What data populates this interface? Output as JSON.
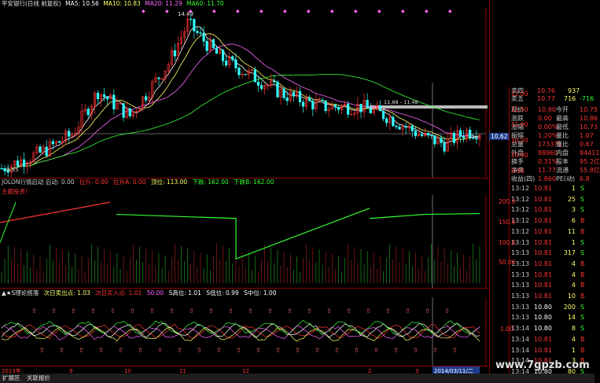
{
  "main_title": {
    "stock": "平安银行(日线 前复权)",
    "ma5": "MA5: 10.56",
    "ma10": "MA10: 10.83",
    "ma20": "MA20: 11.29",
    "ma60": "MA60: 11.70"
  },
  "colors": {
    "up": "#ff3333",
    "down": "#33ffff",
    "ma5": "#ffffff",
    "ma10": "#ffff66",
    "ma20": "#ff66ff",
    "ma60": "#33ff33",
    "axis": "#ff3333",
    "bg": "#000000"
  },
  "main_axis": {
    "ticks": [
      "12.00",
      "11.50",
      "11.00",
      "10.50",
      "10.00",
      "9.50"
    ],
    "current_price": "10.62",
    "ylim": [
      9.45,
      12.2
    ]
  },
  "main_annotations": {
    "high": "14.49",
    "low": "9.55",
    "range": "11.68 - 11.48"
  },
  "ind1": {
    "title": "JOLON行情启动 启动: 0.00",
    "items": [
      "拉升: 0.00",
      "拉升A: 0.00",
      "顶位: 113.00",
      "下跌: 162.00",
      "下跌B: 162.00"
    ],
    "subtitle": "主题投资！",
    "ticks": [
      "200.0",
      "150.0",
      "100.0",
      "50.00"
    ]
  },
  "ind2": {
    "title": "▲★S理论搭落",
    "items": [
      "次日卖出点: 1.03",
      "次日买入点: 1.01",
      "50.00",
      "S高位: 1.01",
      "S低位: 0.99",
      "S中位: 1.00"
    ],
    "ticks": [
      "1.00"
    ]
  },
  "x_axis": {
    "labels": [
      "2013年",
      "9",
      "10",
      "11",
      "12",
      "2",
      "3"
    ],
    "date_box": "2014/03/11/二"
  },
  "quote": {
    "sell5": {
      "label": "卖四",
      "price": "10.76",
      "vol": "937"
    },
    "sell1": {
      "label": "卖五",
      "price": "10.77",
      "vol": "716",
      "chg": "-716"
    },
    "rows": [
      {
        "l1": "现价",
        "v1": "10.80",
        "l2": "今开",
        "v2": "10.75"
      },
      {
        "l1": "涨跌",
        "v1": "0.00",
        "l2": "最高",
        "v2": "10.86"
      },
      {
        "l1": "涨幅",
        "v1": "0.00%",
        "l2": "最低",
        "v2": "10.73"
      },
      {
        "l1": "振幅",
        "v1": "1.20%",
        "l2": "量比",
        "v2": "1.07"
      },
      {
        "l1": "总量",
        "v1": "173371",
        "l2": "量比",
        "v2": "0.67"
      },
      {
        "l1": "外盘",
        "v1": "88960",
        "l2": "内盘",
        "v2": "84411"
      },
      {
        "l1": "换手",
        "v1": "0.31%",
        "l2": "股本",
        "v2": "95.2亿"
      },
      {
        "l1": "净资",
        "v1": "11.77",
        "l2": "流通",
        "v2": "55.8亿"
      },
      {
        "l1": "收益(四)",
        "v1": "1.860",
        "l2": "PE(动)",
        "v2": "6.8"
      }
    ]
  },
  "ticks": [
    {
      "time": "13:12",
      "price": "10.81",
      "vol": "1",
      "side": "S"
    },
    {
      "time": "13:12",
      "price": "10.81",
      "vol": "25",
      "side": "S"
    },
    {
      "time": "13:12",
      "price": "10.81",
      "vol": "3",
      "side": "S"
    },
    {
      "time": "13:12",
      "price": "10.81",
      "vol": "6",
      "side": "B"
    },
    {
      "time": "13:12",
      "price": "10.81",
      "vol": "11",
      "side": "B"
    },
    {
      "time": "13:13",
      "price": "10.81",
      "vol": "1",
      "side": "S"
    },
    {
      "time": "13:13",
      "price": "10.81",
      "vol": "317",
      "side": "S"
    },
    {
      "time": "13:13",
      "price": "10.81",
      "vol": "4",
      "side": "B"
    },
    {
      "time": "13:13",
      "price": "10.81",
      "vol": "4",
      "side": "B"
    },
    {
      "time": "13:13",
      "price": "10.81",
      "vol": "4",
      "side": "B"
    },
    {
      "time": "13:13",
      "price": "10.81",
      "vol": "10",
      "side": "B"
    },
    {
      "time": "13:13",
      "price": "10.80",
      "vol": "200",
      "side": "S"
    },
    {
      "time": "13:13",
      "price": "10.80",
      "vol": "14",
      "side": "S"
    },
    {
      "time": "13:14",
      "price": "10.80",
      "vol": "8",
      "side": "S"
    },
    {
      "time": "13:14",
      "price": "10.81",
      "vol": "4",
      "side": "B"
    },
    {
      "time": "13:14",
      "price": "10.81",
      "vol": "1",
      "side": "B"
    },
    {
      "time": "13:14",
      "price": "10.81",
      "vol": "3",
      "side": "B"
    },
    {
      "time": "13:14",
      "price": "10.80",
      "vol": "80",
      "side": "S"
    }
  ],
  "bottom_tabs": [
    "扩展区",
    "关联报价"
  ],
  "watermark": "www.7gpzb.com"
}
